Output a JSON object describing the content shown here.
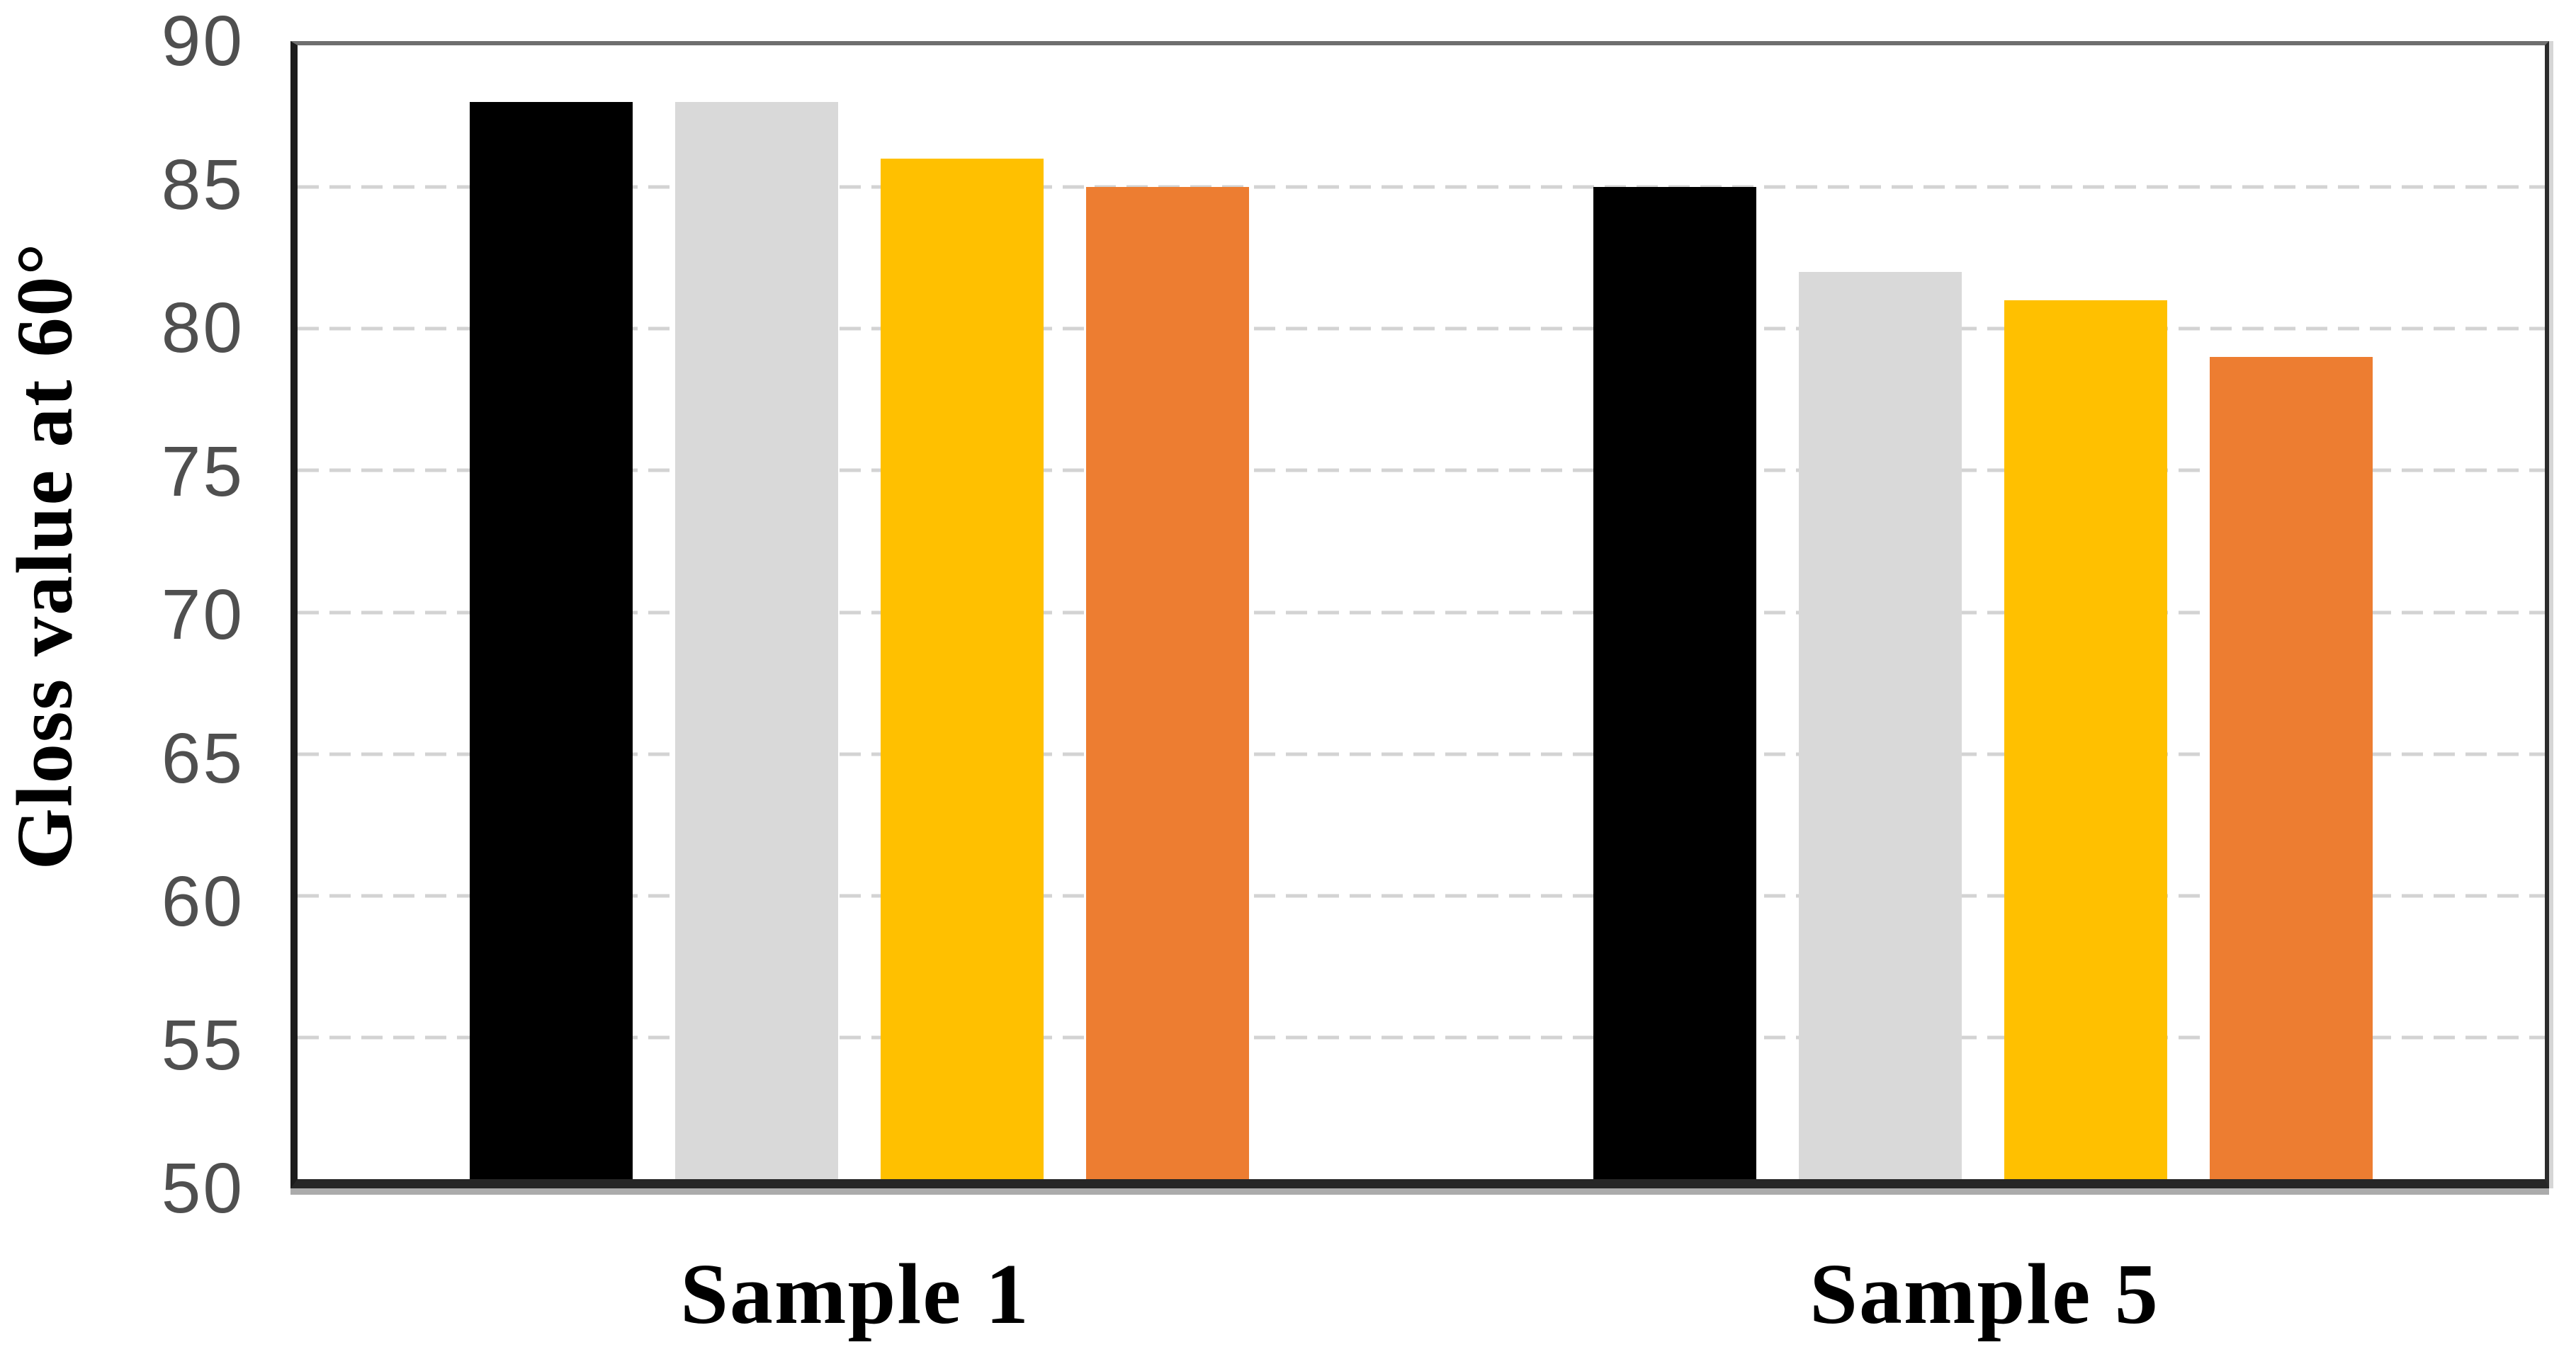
{
  "chart_data": {
    "type": "bar",
    "title": "",
    "ylabel": "Gloss value at 60°",
    "categories": [
      "Sample 1",
      "Sample 5"
    ],
    "series": [
      {
        "name": "black-series",
        "color": "#000000",
        "values": [
          88,
          85
        ]
      },
      {
        "name": "gray-series",
        "color": "#D9D9D9",
        "values": [
          88,
          82
        ]
      },
      {
        "name": "gold-series",
        "color": "#FFC000",
        "values": [
          86,
          81
        ]
      },
      {
        "name": "orange-series",
        "color": "#ED7D31",
        "values": [
          85,
          79
        ]
      }
    ],
    "ylim": [
      50,
      90
    ],
    "yticks": [
      90,
      85,
      80,
      75,
      70,
      65,
      60,
      55,
      50
    ],
    "grid": "dashed-horizontal",
    "legend": "none",
    "frame_colors": {
      "top": "#6F6F6F",
      "left": "#1C1C1C",
      "right": "#2B2B2B",
      "bottom": "#262626",
      "bottom_shadow": "#ABABAB",
      "gridline": "#D3D3D3",
      "tick_label": "#4F4F4F"
    }
  }
}
